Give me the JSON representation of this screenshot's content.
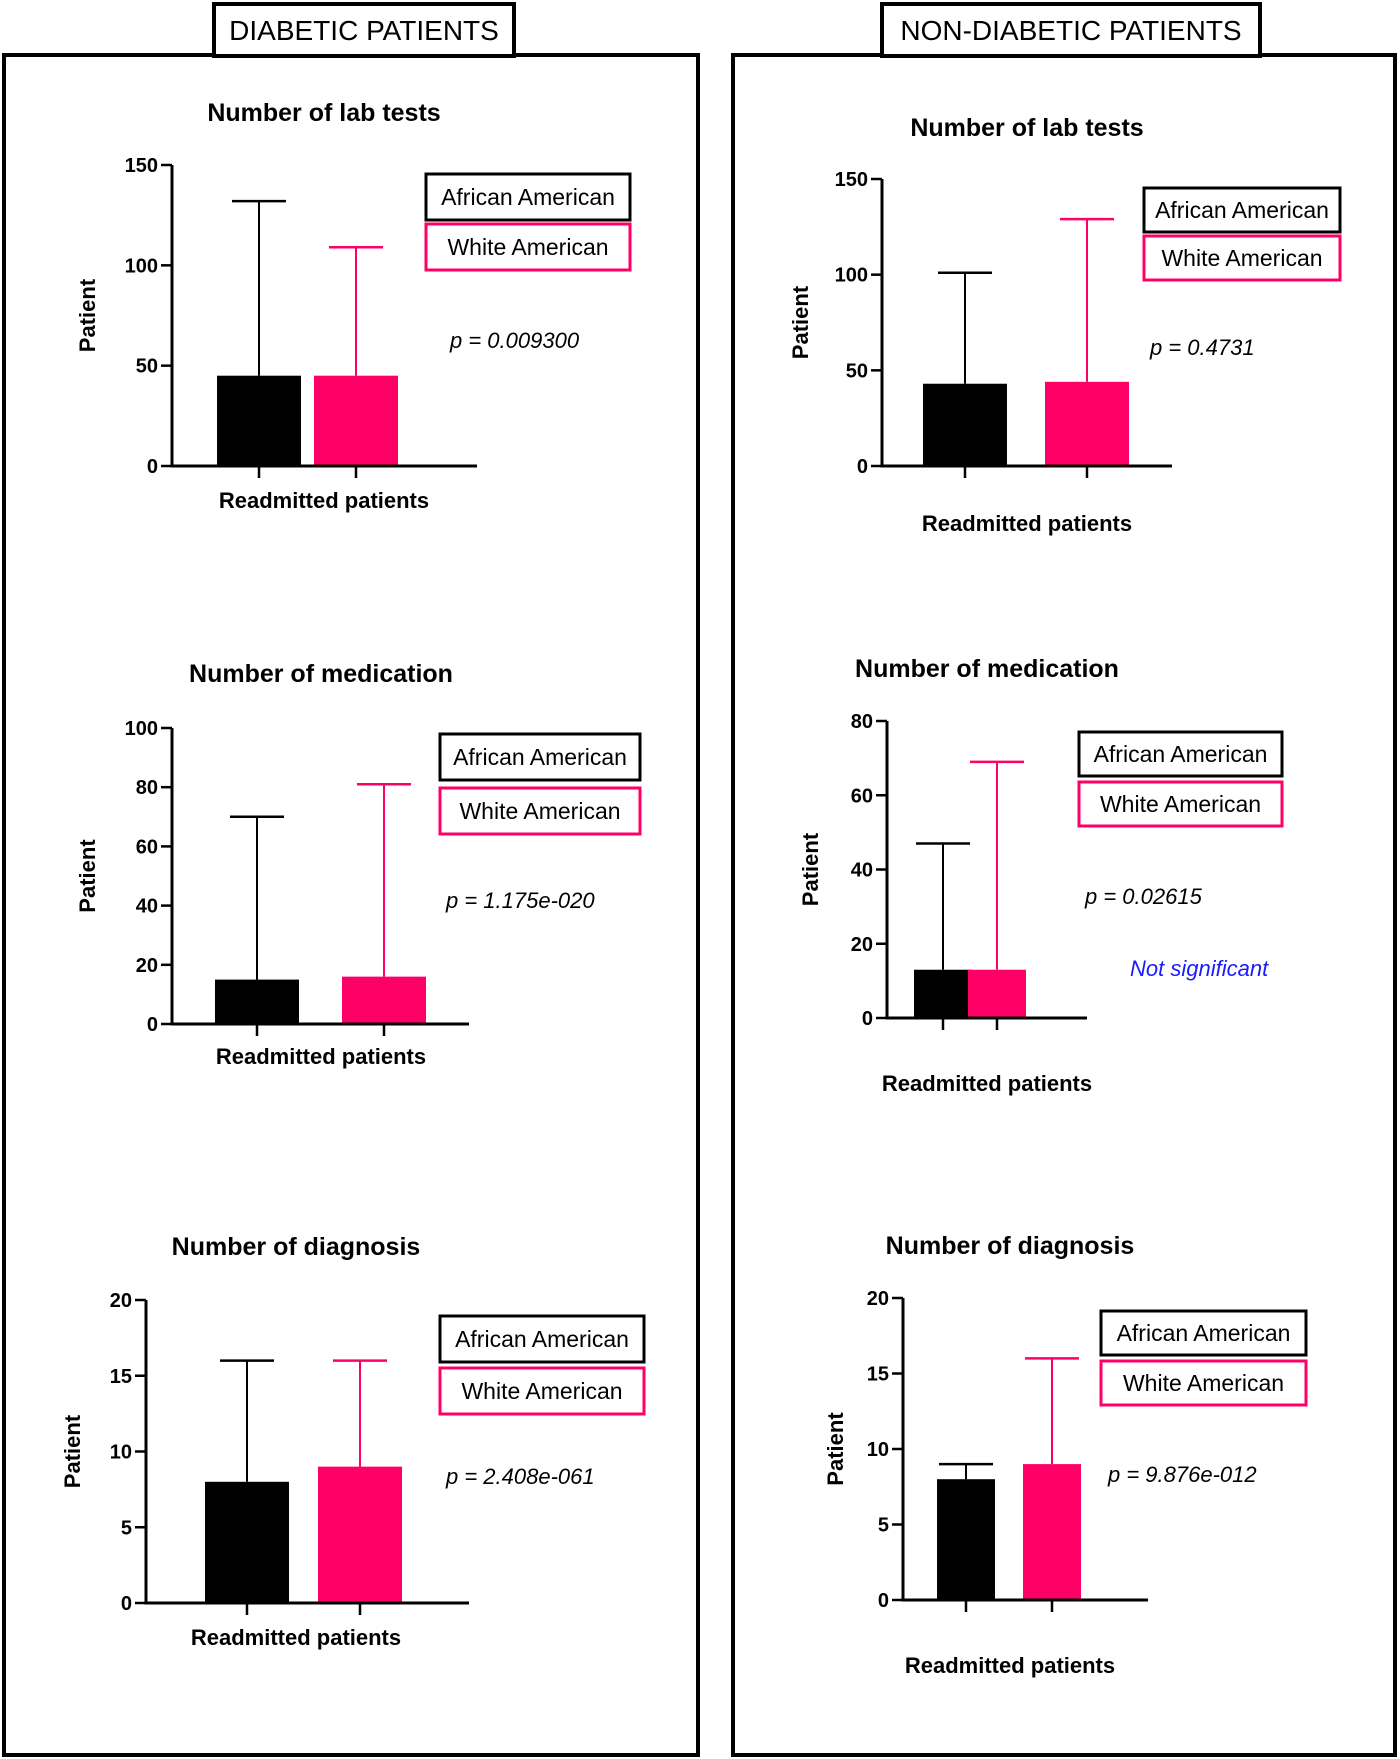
{
  "panels": [
    {
      "label": "DIABETIC PATIENTS"
    },
    {
      "label": "NON-DIABETIC PATIENTS"
    }
  ],
  "colors": {
    "african_american": "#000000",
    "white_american": "#ff0066",
    "note": "#1a1aff",
    "frame": "#000000"
  },
  "chart_data": [
    {
      "panel": "DIABETIC PATIENTS",
      "type": "bar",
      "title": "Number of lab tests",
      "xlabel": "Readmitted patients",
      "ylabel": "Patient",
      "ylim": [
        0,
        150
      ],
      "yticks": [
        0,
        50,
        100,
        150
      ],
      "series": [
        {
          "name": "African American",
          "value": 45,
          "error_top": 132
        },
        {
          "name": "White American",
          "value": 45,
          "error_top": 109
        }
      ],
      "p_value": "p = 0.009300",
      "note": ""
    },
    {
      "panel": "DIABETIC PATIENTS",
      "type": "bar",
      "title": "Number of medication",
      "xlabel": "Readmitted patients",
      "ylabel": "Patient",
      "ylim": [
        0,
        100
      ],
      "yticks": [
        0,
        20,
        40,
        60,
        80,
        100
      ],
      "series": [
        {
          "name": "African American",
          "value": 15,
          "error_top": 70
        },
        {
          "name": "White American",
          "value": 16,
          "error_top": 81
        }
      ],
      "p_value": "p = 1.175e-020",
      "note": ""
    },
    {
      "panel": "DIABETIC PATIENTS",
      "type": "bar",
      "title": "Number of diagnosis",
      "xlabel": "Readmitted patients",
      "ylabel": "Patient",
      "ylim": [
        0,
        20
      ],
      "yticks": [
        0,
        5,
        10,
        15,
        20
      ],
      "series": [
        {
          "name": "African American",
          "value": 8,
          "error_top": 16
        },
        {
          "name": "White American",
          "value": 9,
          "error_top": 16
        }
      ],
      "p_value": "p = 2.408e-061",
      "note": ""
    },
    {
      "panel": "NON-DIABETIC PATIENTS",
      "type": "bar",
      "title": "Number of lab tests",
      "xlabel": "Readmitted patients",
      "ylabel": "Patient",
      "ylim": [
        0,
        150
      ],
      "yticks": [
        0,
        50,
        100,
        150
      ],
      "series": [
        {
          "name": "African American",
          "value": 43,
          "error_top": 101
        },
        {
          "name": "White American",
          "value": 44,
          "error_top": 129
        }
      ],
      "p_value": "p = 0.4731",
      "note": ""
    },
    {
      "panel": "NON-DIABETIC PATIENTS",
      "type": "bar",
      "title": "Number of medication",
      "xlabel": "Readmitted patients",
      "ylabel": "Patient",
      "ylim": [
        0,
        80
      ],
      "yticks": [
        0,
        20,
        40,
        60,
        80
      ],
      "series": [
        {
          "name": "African American",
          "value": 13,
          "error_top": 47
        },
        {
          "name": "White American",
          "value": 13,
          "error_top": 69
        }
      ],
      "p_value": "p = 0.02615",
      "note": "Not significant"
    },
    {
      "panel": "NON-DIABETIC PATIENTS",
      "type": "bar",
      "title": "Number of diagnosis",
      "xlabel": "Readmitted patients",
      "ylabel": "Patient",
      "ylim": [
        0,
        20
      ],
      "yticks": [
        0,
        5,
        10,
        15,
        20
      ],
      "series": [
        {
          "name": "African American",
          "value": 8,
          "error_top": 9
        },
        {
          "name": "White American",
          "value": 9,
          "error_top": 16
        }
      ],
      "p_value": "p = 9.876e-012",
      "note": ""
    }
  ]
}
